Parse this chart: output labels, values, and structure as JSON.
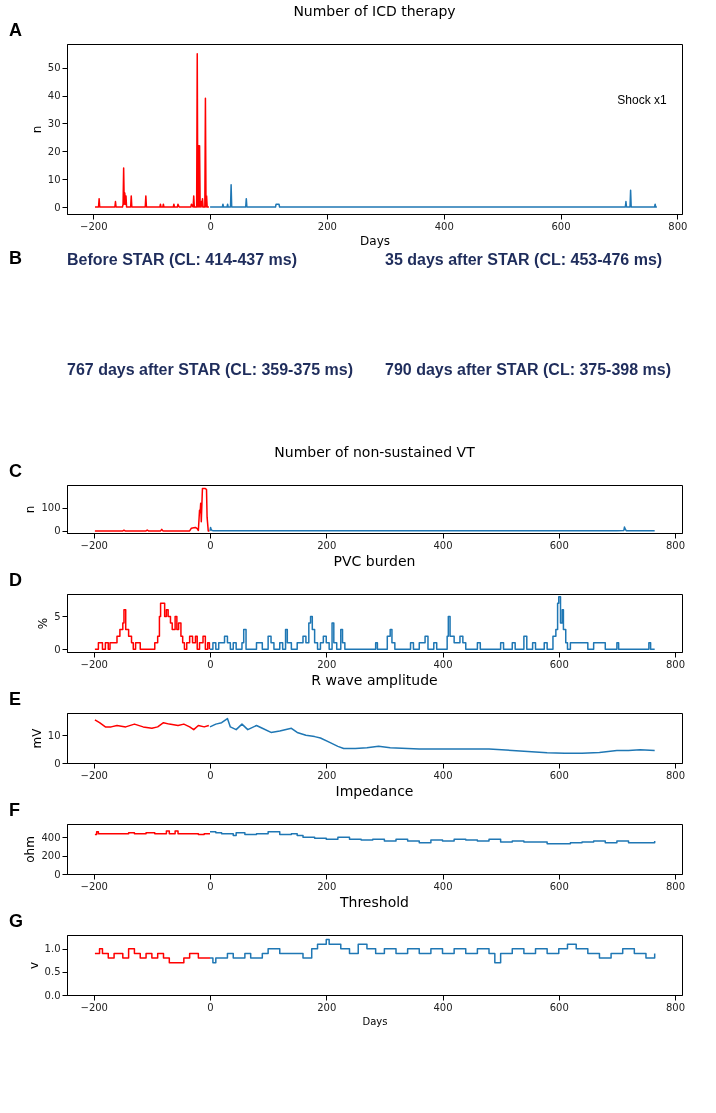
{
  "chart_data": [
    {
      "type": "line",
      "title": "Number of ICD therapy",
      "xlabel": "Days",
      "ylabel": "n",
      "grid": false,
      "xlim": [
        -245,
        808
      ],
      "ylim": [
        -2.5,
        58.5
      ],
      "xticks": [
        -200,
        0,
        200,
        400,
        600,
        800
      ],
      "yticks": [
        0,
        10,
        20,
        30,
        40,
        50
      ],
      "annotations": [
        "A",
        "Shock x1"
      ],
      "series": [
        {
          "color": "#ff0000",
          "x": [
            -197,
            -191,
            -190,
            -189,
            -163,
            -162,
            -161,
            -150,
            -149,
            -148,
            -147,
            -146,
            -145,
            -144,
            -143,
            -136,
            -135,
            -134,
            -111,
            -110,
            -109,
            -86,
            -85,
            -84,
            -81,
            -80,
            -79,
            -63,
            -62,
            -61,
            -56,
            -55,
            -53,
            -33,
            -32,
            -29,
            -28,
            -27,
            -23,
            -22,
            -21,
            -20,
            -19,
            -18,
            -17,
            -16,
            -15,
            -14,
            -13,
            -12,
            -11,
            -9,
            -8,
            -7,
            -6,
            -5,
            -2
          ],
          "values": [
            0,
            0,
            3,
            0,
            0,
            2,
            0,
            0,
            1,
            14,
            1,
            5,
            1,
            4,
            0,
            0,
            4,
            0,
            0,
            4,
            0,
            0,
            1,
            0,
            0,
            1,
            0,
            0,
            1,
            0,
            0,
            1,
            0,
            0,
            1,
            0,
            4,
            0,
            0,
            55,
            0,
            22,
            0,
            22,
            0,
            1,
            2,
            0,
            3,
            0,
            0,
            0,
            39,
            0,
            4,
            0,
            0
          ]
        },
        {
          "color": "#1f77b4",
          "x": [
            0,
            21,
            22,
            23,
            29,
            30,
            31,
            35,
            36,
            37,
            61,
            62,
            63,
            112,
            113,
            118,
            119,
            711,
            712,
            713,
            719,
            720,
            721,
            761,
            762,
            763,
            765
          ],
          "values": [
            0,
            0,
            1,
            0,
            0,
            1,
            0,
            0,
            8,
            0,
            0,
            3,
            0,
            0,
            1,
            1,
            0,
            0,
            2,
            0,
            0,
            6,
            0,
            0,
            1,
            0,
            0
          ]
        }
      ]
    },
    {
      "type": "other",
      "annotations": [
        "B",
        "Before STAR (CL: 414-437 ms)",
        "35 days after STAR (CL: 453-476 ms)",
        "767 days after STAR (CL: 359-375 ms)",
        "790 days after STAR (CL: 375-398 ms)"
      ]
    },
    {
      "type": "line",
      "title": "Number of non-sustained VT",
      "ylabel": "n",
      "grid": false,
      "xlim": [
        -246,
        812
      ],
      "ylim": [
        -9,
        200
      ],
      "xticks": [
        -200,
        0,
        200,
        400,
        600,
        800
      ],
      "yticks": [
        0,
        100
      ],
      "annotations": [
        "C"
      ],
      "series": [
        {
          "color": "#ff0000",
          "x": [
            -198,
            -150,
            -148,
            -146,
            -110,
            -108,
            -106,
            -85,
            -83,
            -81,
            -35,
            -32,
            -28,
            -25,
            -22,
            -20,
            -18,
            -17,
            -16,
            -15,
            -13,
            -12,
            -10,
            -8,
            -6,
            -5,
            -3,
            -1
          ],
          "values": [
            0,
            0,
            3,
            0,
            0,
            4,
            0,
            0,
            7,
            0,
            0,
            12,
            14,
            15,
            10,
            2,
            90,
            80,
            120,
            40,
            185,
            185,
            185,
            185,
            180,
            60,
            0,
            0
          ]
        },
        {
          "color": "#1f77b4",
          "x": [
            0,
            1,
            2,
            3,
            4,
            6,
            100,
            200,
            300,
            400,
            500,
            600,
            700,
            712,
            713,
            714,
            716,
            765
          ],
          "values": [
            0,
            15,
            8,
            3,
            2,
            1,
            1,
            1,
            1,
            1,
            1,
            1,
            1,
            2,
            17,
            10,
            1,
            1
          ]
        }
      ]
    },
    {
      "type": "step",
      "title": "PVC burden",
      "ylabel": "%",
      "grid": false,
      "xlim": [
        -246,
        812
      ],
      "ylim": [
        -0.4,
        8.4
      ],
      "xticks": [
        -200,
        0,
        200,
        400,
        600,
        800
      ],
      "yticks": [
        0,
        5
      ],
      "annotations": [
        "D"
      ],
      "series": [
        {
          "color": "#ff0000",
          "x": [
            -198,
            -192,
            -185,
            -180,
            -175,
            -172,
            -165,
            -160,
            -155,
            -150,
            -148,
            -145,
            -140,
            -135,
            -132,
            -128,
            -120,
            -100,
            -95,
            -90,
            -87,
            -85,
            -80,
            -78,
            -75,
            -72,
            -68,
            -65,
            -60,
            -57,
            -54,
            -50,
            -47,
            -44,
            -40,
            -35,
            -30,
            -25,
            -22,
            -18,
            -12,
            -8,
            -4,
            -1
          ],
          "values": [
            0,
            1,
            0,
            1,
            0,
            1,
            1,
            2,
            3,
            4,
            6,
            3,
            2,
            1,
            0,
            1,
            0,
            0,
            1,
            2,
            5,
            7,
            7,
            5,
            6,
            5,
            4,
            3,
            5,
            3,
            4,
            2,
            1,
            0,
            1,
            2,
            1,
            2,
            0,
            1,
            2,
            0,
            1,
            0
          ]
        },
        {
          "color": "#1f77b4",
          "x": [
            0,
            5,
            10,
            15,
            20,
            25,
            30,
            35,
            40,
            45,
            55,
            58,
            62,
            70,
            80,
            90,
            100,
            105,
            110,
            120,
            125,
            130,
            133,
            140,
            150,
            160,
            165,
            170,
            173,
            176,
            180,
            185,
            190,
            195,
            200,
            205,
            210,
            213,
            218,
            225,
            228,
            232,
            285,
            288,
            305,
            310,
            313,
            318,
            345,
            350,
            360,
            370,
            375,
            385,
            390,
            408,
            410,
            413,
            420,
            430,
            435,
            440,
            460,
            465,
            500,
            505,
            520,
            525,
            540,
            545,
            555,
            560,
            575,
            580,
            590,
            595,
            598,
            600,
            603,
            606,
            608,
            612,
            615,
            620,
            640,
            650,
            660,
            670,
            680,
            700,
            703,
            755,
            758,
            765
          ],
          "values": [
            0,
            1,
            0,
            1,
            1,
            2,
            1,
            0,
            1,
            0,
            1,
            3,
            0,
            0,
            1,
            0,
            2,
            1,
            0,
            1,
            0,
            3,
            1,
            0,
            1,
            2,
            1,
            4,
            5,
            3,
            1,
            0,
            1,
            2,
            1,
            0,
            4,
            1,
            0,
            3,
            1,
            0,
            1,
            0,
            2,
            3,
            1,
            0,
            1,
            0,
            1,
            2,
            0,
            1,
            0,
            2,
            5,
            2,
            1,
            2,
            1,
            0,
            1,
            0,
            1,
            0,
            1,
            0,
            2,
            0,
            1,
            0,
            1,
            0,
            2,
            3,
            7,
            8,
            4,
            6,
            3,
            1,
            0,
            1,
            1,
            0,
            1,
            1,
            0,
            1,
            0,
            1,
            0,
            0
          ]
        }
      ]
    },
    {
      "type": "line",
      "title": "R wave amplitude",
      "ylabel": "mV",
      "grid": false,
      "xlim": [
        -246,
        812
      ],
      "ylim": [
        0,
        18
      ],
      "xticks": [
        -200,
        0,
        200,
        400,
        600,
        800
      ],
      "yticks": [
        0,
        10
      ],
      "annotations": [
        "E"
      ],
      "series": [
        {
          "color": "#ff0000",
          "x": [
            -198,
            -190,
            -180,
            -170,
            -160,
            -145,
            -130,
            -115,
            -100,
            -90,
            -80,
            -70,
            -55,
            -45,
            -35,
            -28,
            -20,
            -10,
            -2
          ],
          "values": [
            15.5,
            14.5,
            13,
            13,
            13.5,
            13,
            14,
            13,
            12.5,
            13,
            14.5,
            14,
            13.5,
            14,
            13,
            12,
            13.5,
            13,
            13.5
          ]
        },
        {
          "color": "#1f77b4",
          "x": [
            0,
            10,
            20,
            30,
            35,
            45,
            55,
            65,
            80,
            90,
            105,
            120,
            140,
            150,
            165,
            180,
            190,
            205,
            220,
            230,
            250,
            270,
            290,
            310,
            330,
            360,
            400,
            440,
            480,
            520,
            560,
            580,
            610,
            640,
            670,
            700,
            720,
            740,
            765
          ],
          "values": [
            13,
            14,
            14.5,
            16,
            13,
            12,
            14,
            12,
            13.5,
            12.5,
            11,
            11.5,
            12.5,
            11,
            10,
            9.5,
            9,
            7.5,
            6,
            5.2,
            5.2,
            5.5,
            6,
            5.5,
            5.3,
            5,
            5,
            5,
            5,
            4.5,
            4,
            3.7,
            3.5,
            3.5,
            3.8,
            4.5,
            4.5,
            4.8,
            4.5
          ]
        }
      ]
    },
    {
      "type": "step",
      "title": "Impedance",
      "ylabel": "ohm",
      "grid": false,
      "xlim": [
        -246,
        812
      ],
      "ylim": [
        0,
        545
      ],
      "xticks": [
        -200,
        0,
        200,
        400,
        600,
        800
      ],
      "yticks": [
        0,
        200,
        400
      ],
      "annotations": [
        "F"
      ],
      "series": [
        {
          "color": "#ff0000",
          "x": [
            -198,
            -195,
            -192,
            -140,
            -130,
            -110,
            -95,
            -75,
            -70,
            -60,
            -55,
            -35,
            -20,
            -10,
            0
          ],
          "values": [
            430,
            460,
            440,
            450,
            440,
            450,
            440,
            470,
            440,
            470,
            440,
            440,
            430,
            440,
            440
          ]
        },
        {
          "color": "#1f77b4",
          "x": [
            0,
            10,
            20,
            40,
            45,
            60,
            80,
            100,
            120,
            140,
            150,
            160,
            180,
            200,
            220,
            240,
            260,
            280,
            300,
            320,
            340,
            360,
            380,
            400,
            420,
            440,
            460,
            480,
            500,
            520,
            540,
            560,
            580,
            600,
            620,
            640,
            660,
            680,
            700,
            720,
            740,
            765
          ],
          "values": [
            460,
            450,
            440,
            420,
            450,
            430,
            440,
            460,
            430,
            440,
            420,
            400,
            390,
            380,
            400,
            380,
            370,
            380,
            360,
            380,
            360,
            340,
            370,
            360,
            380,
            370,
            360,
            380,
            350,
            360,
            350,
            350,
            330,
            330,
            340,
            350,
            360,
            340,
            360,
            340,
            340,
            360
          ]
        }
      ]
    },
    {
      "type": "step",
      "title": "Threshold",
      "xlabel": "Days",
      "ylabel": "v",
      "grid": false,
      "xlim": [
        -246,
        812
      ],
      "ylim": [
        0,
        1.3
      ],
      "xticks": [
        -200,
        0,
        200,
        400,
        600,
        800
      ],
      "yticks": [
        {
          "value": 0,
          "label": "0.0"
        },
        0.5,
        {
          "value": 1,
          "label": "1.0"
        }
      ],
      "annotations": [
        "G"
      ],
      "series": [
        {
          "color": "#ff0000",
          "x": [
            -198,
            -190,
            -185,
            -175,
            -165,
            -150,
            -140,
            -130,
            -120,
            -110,
            -100,
            -90,
            -80,
            -70,
            -55,
            -45,
            -35,
            -20,
            -5,
            0
          ],
          "values": [
            0.9,
            1.0,
            0.9,
            0.8,
            0.9,
            0.8,
            1.0,
            0.9,
            0.8,
            0.9,
            0.8,
            0.9,
            0.8,
            0.7,
            0.7,
            0.8,
            0.9,
            0.8,
            0.8,
            0.8
          ]
        },
        {
          "color": "#1f77b4",
          "x": [
            0,
            5,
            10,
            30,
            40,
            60,
            70,
            90,
            100,
            120,
            150,
            160,
            175,
            185,
            200,
            205,
            225,
            240,
            255,
            270,
            285,
            300,
            320,
            340,
            360,
            380,
            400,
            420,
            440,
            460,
            480,
            490,
            500,
            520,
            540,
            560,
            580,
            600,
            615,
            630,
            650,
            670,
            690,
            710,
            730,
            750,
            765
          ],
          "values": [
            0.8,
            0.7,
            0.8,
            0.9,
            0.8,
            0.9,
            0.8,
            0.9,
            1.0,
            0.9,
            0.9,
            0.8,
            1.0,
            1.1,
            1.2,
            1.1,
            1.0,
            0.9,
            1.1,
            1.0,
            0.9,
            1.0,
            0.9,
            1.0,
            0.9,
            1.0,
            0.9,
            1.0,
            0.9,
            1.0,
            0.9,
            0.7,
            0.9,
            1.0,
            0.9,
            1.0,
            0.9,
            1.0,
            1.1,
            1.0,
            0.9,
            0.8,
            0.9,
            1.0,
            0.9,
            0.8,
            0.9
          ]
        }
      ]
    }
  ]
}
